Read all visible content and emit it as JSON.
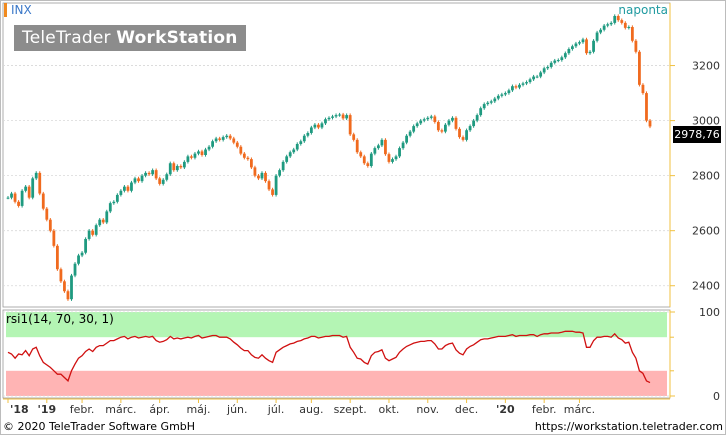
{
  "header": {
    "symbol": "INX",
    "period": "naponta",
    "watermark_part1": "TeleTrader ",
    "watermark_part2": "WorkStation",
    "last_price": "2978,76"
  },
  "rsi": {
    "label": "rsi1(14, 70, 30, 1)",
    "overbought": 70,
    "oversold": 30,
    "y_ticks": [
      "100",
      "0"
    ]
  },
  "footer": {
    "copyright": "© 2020 TeleTrader Software GmbH",
    "url": "https://workstation.teletrader.com"
  },
  "colors": {
    "up": "#1f9a80",
    "down": "#f06a1e",
    "rsi_line": "#d01010",
    "overbought_zone": "#b4f5b4",
    "oversold_zone": "#ffb4b4",
    "axis": "#f0c040"
  },
  "chart_data": {
    "type": "line",
    "main_series": "INX",
    "ylim": [
      2330,
      3420
    ],
    "y_ticks": [
      "3200",
      "3000",
      "2800",
      "2600",
      "2400"
    ],
    "x_labels": [
      "'18",
      "'19",
      "febr.",
      "márc.",
      "ápr.",
      "máj.",
      "jún.",
      "júl.",
      "aug.",
      "szept.",
      "okt.",
      "nov.",
      "dec.",
      "'20",
      "febr.",
      "márc."
    ],
    "x_label_index": [
      0,
      11,
      21,
      32,
      43,
      54,
      65,
      76,
      86,
      97,
      108,
      119,
      130,
      141,
      152,
      162
    ],
    "close": [
      2720,
      2735,
      2705,
      2690,
      2745,
      2760,
      2720,
      2790,
      2810,
      2735,
      2680,
      2640,
      2600,
      2545,
      2460,
      2416,
      2380,
      2351,
      2437,
      2480,
      2510,
      2520,
      2570,
      2600,
      2585,
      2620,
      2640,
      2630,
      2670,
      2700,
      2705,
      2730,
      2745,
      2760,
      2745,
      2775,
      2790,
      2780,
      2800,
      2810,
      2805,
      2820,
      2790,
      2770,
      2785,
      2805,
      2845,
      2820,
      2835,
      2830,
      2850,
      2870,
      2865,
      2880,
      2888,
      2875,
      2895,
      2905,
      2925,
      2935,
      2930,
      2940,
      2945,
      2935,
      2920,
      2905,
      2880,
      2865,
      2860,
      2830,
      2800,
      2790,
      2810,
      2780,
      2750,
      2730,
      2800,
      2820,
      2850,
      2870,
      2885,
      2895,
      2915,
      2925,
      2945,
      2955,
      2975,
      2985,
      2975,
      2990,
      3005,
      3010,
      3015,
      3020,
      3022,
      3008,
      3020,
      2950,
      2930,
      2885,
      2870,
      2845,
      2835,
      2880,
      2900,
      2910,
      2930,
      2878,
      2850,
      2860,
      2870,
      2900,
      2920,
      2945,
      2960,
      2980,
      2990,
      3000,
      3005,
      3010,
      3015,
      2995,
      2965,
      2960,
      2985,
      3000,
      3010,
      2970,
      2940,
      2930,
      2965,
      2980,
      3000,
      3020,
      3045,
      3060,
      3065,
      3070,
      3080,
      3090,
      3095,
      3100,
      3110,
      3125,
      3120,
      3130,
      3135,
      3140,
      3150,
      3160,
      3160,
      3175,
      3190,
      3195,
      3210,
      3218,
      3220,
      3230,
      3245,
      3260,
      3270,
      3280,
      3285,
      3295,
      3245,
      3250,
      3290,
      3320,
      3330,
      3345,
      3350,
      3355,
      3380,
      3365,
      3355,
      3337,
      3340,
      3290,
      3250,
      3130,
      3100,
      3000,
      2978.76
    ],
    "rsi": [
      52,
      50,
      45,
      50,
      49,
      54,
      48,
      56,
      58,
      48,
      40,
      37,
      34,
      30,
      26,
      26,
      22,
      18,
      30,
      38,
      45,
      48,
      53,
      56,
      53,
      58,
      60,
      60,
      63,
      66,
      66,
      68,
      70,
      71,
      68,
      70,
      71,
      69,
      70,
      71,
      70,
      71,
      66,
      64,
      65,
      67,
      71,
      68,
      69,
      68,
      69,
      70,
      69,
      71,
      72,
      69,
      70,
      71,
      72,
      72,
      70,
      70,
      70,
      68,
      64,
      61,
      57,
      54,
      54,
      49,
      46,
      45,
      49,
      45,
      42,
      40,
      52,
      55,
      58,
      60,
      62,
      63,
      65,
      66,
      68,
      69,
      71,
      71,
      69,
      70,
      71,
      71,
      72,
      72,
      72,
      70,
      71,
      58,
      52,
      45,
      44,
      40,
      38,
      48,
      52,
      53,
      55,
      45,
      42,
      44,
      46,
      52,
      56,
      59,
      61,
      63,
      64,
      65,
      65,
      66,
      66,
      62,
      56,
      56,
      60,
      62,
      63,
      55,
      51,
      49,
      56,
      59,
      61,
      64,
      67,
      68,
      68,
      69,
      70,
      71,
      71,
      71,
      72,
      73,
      71,
      72,
      72,
      72,
      73,
      73,
      71,
      73,
      74,
      74,
      75,
      75,
      75,
      76,
      77,
      77,
      77,
      76,
      76,
      75,
      58,
      58,
      66,
      70,
      70,
      71,
      71,
      70,
      74,
      69,
      67,
      63,
      64,
      52,
      45,
      30,
      27,
      18,
      16
    ]
  }
}
